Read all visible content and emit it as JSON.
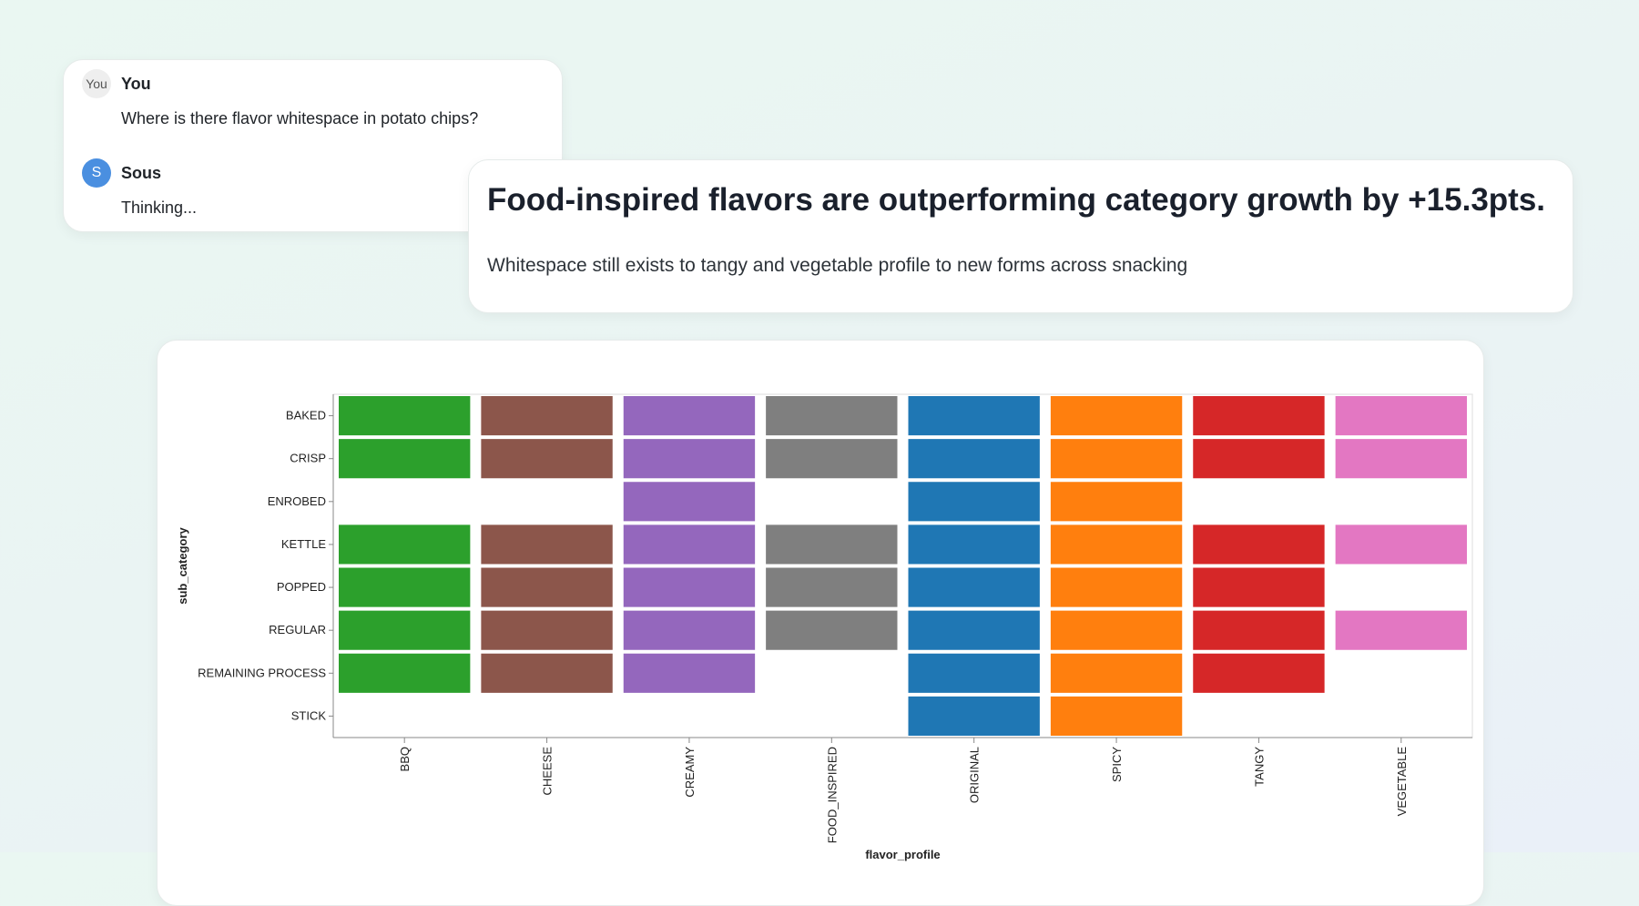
{
  "chat": {
    "user": {
      "avatar": "You",
      "name": "You",
      "message": "Where is there flavor whitespace in potato chips?"
    },
    "assistant": {
      "avatar": "S",
      "name": "Sous",
      "message": "Thinking..."
    }
  },
  "insight": {
    "headline": "Food-inspired flavors are outperforming category growth by +15.3pts.",
    "subtext": "Whitespace still exists to tangy and vegetable profile to new forms across snacking"
  },
  "chart_data": {
    "type": "heatmap",
    "xlabel": "flavor_profile",
    "ylabel": "sub_category",
    "x_categories": [
      "BBQ",
      "CHEESE",
      "CREAMY",
      "FOOD_INSPIRED",
      "ORIGINAL",
      "SPICY",
      "TANGY",
      "VEGETABLE"
    ],
    "y_categories": [
      "BAKED",
      "CRISP",
      "ENROBED",
      "KETTLE",
      "POPPED",
      "REGULAR",
      "REMAINING PROCESS",
      "STICK"
    ],
    "colors": {
      "BBQ": "#2ca02c",
      "CHEESE": "#8c564b",
      "CREAMY": "#9467bd",
      "FOOD_INSPIRED": "#7f7f7f",
      "ORIGINAL": "#1f77b4",
      "SPICY": "#ff7f0e",
      "TANGY": "#d62728",
      "VEGETABLE": "#e377c2"
    },
    "present": {
      "BBQ": [
        "BAKED",
        "CRISP",
        "KETTLE",
        "POPPED",
        "REGULAR",
        "REMAINING PROCESS"
      ],
      "CHEESE": [
        "BAKED",
        "CRISP",
        "KETTLE",
        "POPPED",
        "REGULAR",
        "REMAINING PROCESS"
      ],
      "CREAMY": [
        "BAKED",
        "CRISP",
        "ENROBED",
        "KETTLE",
        "POPPED",
        "REGULAR",
        "REMAINING PROCESS"
      ],
      "FOOD_INSPIRED": [
        "BAKED",
        "CRISP",
        "KETTLE",
        "POPPED",
        "REGULAR"
      ],
      "ORIGINAL": [
        "BAKED",
        "CRISP",
        "ENROBED",
        "KETTLE",
        "POPPED",
        "REGULAR",
        "REMAINING PROCESS",
        "STICK"
      ],
      "SPICY": [
        "BAKED",
        "CRISP",
        "ENROBED",
        "KETTLE",
        "POPPED",
        "REGULAR",
        "REMAINING PROCESS",
        "STICK"
      ],
      "TANGY": [
        "BAKED",
        "CRISP",
        "KETTLE",
        "POPPED",
        "REGULAR",
        "REMAINING PROCESS"
      ],
      "VEGETABLE": [
        "BAKED",
        "CRISP",
        "KETTLE",
        "REGULAR"
      ]
    }
  }
}
